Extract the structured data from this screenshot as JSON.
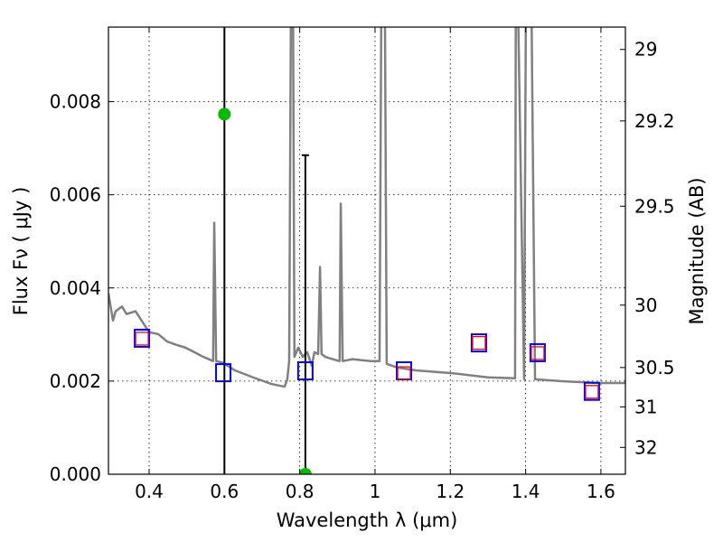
{
  "chart_data": {
    "type": "line",
    "xlabel": "Wavelength  λ (μm)",
    "ylabel": "Flux  Fν  ( μJy )",
    "ylabel_right": "Magnitude (AB)",
    "xlim": [
      0.292,
      1.665
    ],
    "ylim": [
      0,
      0.0096
    ],
    "grid": true,
    "x_ticks": [
      0.4,
      0.6,
      0.8,
      1.0,
      1.2,
      1.4,
      1.6
    ],
    "x_tick_labels": [
      "0.4",
      "0.6",
      "0.8",
      "1",
      "1.2",
      "1.4",
      "1.6"
    ],
    "y_ticks": [
      0,
      0.002,
      0.004,
      0.006,
      0.008
    ],
    "y_tick_labels": [
      "0.000",
      "0.002",
      "0.004",
      "0.006",
      "0.008"
    ],
    "right_ticks": [
      29,
      29.2,
      29.5,
      30,
      30.5,
      31,
      32
    ],
    "right_tick_labels": [
      "29",
      "29.2",
      "29.5",
      "30",
      "30.5",
      "31",
      "32"
    ],
    "colors": {
      "spectrum": "#808080",
      "observed": "#0000ff",
      "model": "#ff0000",
      "detection": "#00bb00",
      "errorbar": "#000000"
    },
    "series": [
      {
        "name": "model spectrum",
        "type": "line",
        "x": [
          0.292,
          0.304,
          0.311,
          0.328,
          0.34,
          0.364,
          0.388,
          0.4,
          0.424,
          0.448,
          0.472,
          0.496,
          0.52,
          0.544,
          0.57,
          0.573,
          0.578,
          0.597,
          0.628,
          0.676,
          0.724,
          0.76,
          0.767,
          0.772,
          0.777,
          0.782,
          0.786,
          0.796,
          0.808,
          0.82,
          0.832,
          0.839,
          0.849,
          0.854,
          0.858,
          0.868,
          0.892,
          0.906,
          0.909,
          0.914,
          0.94,
          0.988,
          1.012,
          1.017,
          1.026,
          1.031,
          1.06,
          1.108,
          1.204,
          1.3,
          1.372,
          1.374,
          1.379,
          1.396,
          1.401,
          1.415,
          1.425,
          1.492,
          1.588,
          1.665
        ],
        "y": [
          0.00388,
          0.0033,
          0.0035,
          0.0036,
          0.00344,
          0.0035,
          0.0032,
          0.00305,
          0.00301,
          0.00285,
          0.00278,
          0.00272,
          0.00262,
          0.00252,
          0.00243,
          0.0054,
          0.00243,
          0.00239,
          0.00223,
          0.00208,
          0.00194,
          0.00188,
          0.00204,
          0.00243,
          0.0105,
          0.0105,
          0.00252,
          0.00272,
          0.00252,
          0.00262,
          0.00233,
          0.00262,
          0.00258,
          0.00445,
          0.00258,
          0.00252,
          0.00246,
          0.00243,
          0.00581,
          0.00243,
          0.00247,
          0.00243,
          0.00243,
          0.0105,
          0.0105,
          0.00237,
          0.00229,
          0.00223,
          0.00217,
          0.00208,
          0.00206,
          0.0105,
          0.0105,
          0.00204,
          0.0105,
          0.0105,
          0.00204,
          0.002,
          0.00196,
          0.00196
        ]
      },
      {
        "name": "observed photometry",
        "type": "square",
        "x": [
          0.381,
          0.597,
          0.815,
          1.077,
          1.276,
          1.432,
          1.576
        ],
        "y": [
          0.00293,
          0.00219,
          0.00223,
          0.00223,
          0.00283,
          0.00262,
          0.00179
        ]
      },
      {
        "name": "model photometry",
        "type": "square",
        "x": [
          0.381,
          1.077,
          1.276,
          1.432,
          1.576
        ],
        "y": [
          0.00291,
          0.00217,
          0.00282,
          0.0026,
          0.00177
        ]
      },
      {
        "name": "detections",
        "type": "errorbar",
        "x": [
          0.6,
          0.815
        ],
        "y": [
          0.00773,
          0.0
        ],
        "ylow": [
          0.0,
          0.0
        ],
        "yhigh": [
          0.02,
          0.00685
        ]
      }
    ]
  }
}
